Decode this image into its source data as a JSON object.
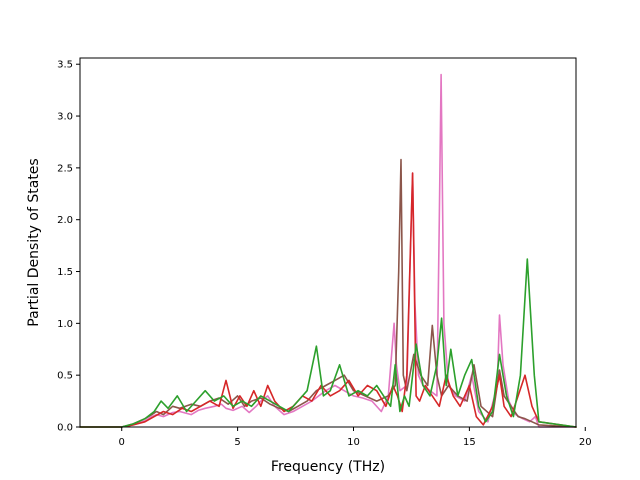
{
  "chart_data": {
    "type": "line",
    "title": "",
    "xlabel": "Frequency (THz)",
    "ylabel": "Partial Density of States",
    "xlim": [
      -1.8,
      19.6
    ],
    "ylim": [
      0,
      3.56
    ],
    "xticks": [
      0,
      5,
      10,
      15,
      20
    ],
    "yticks": [
      0.0,
      0.5,
      1.0,
      1.5,
      2.0,
      2.5,
      3.0,
      3.5
    ],
    "xtick_labels": [
      "0",
      "5",
      "10",
      "15",
      "20"
    ],
    "ytick_labels": [
      "0.0",
      "0.5",
      "1.0",
      "1.5",
      "2.0",
      "2.5",
      "3.0",
      "3.5"
    ],
    "grid": false,
    "legend": "none",
    "series": [
      {
        "color": "#e377c2",
        "x": [
          -1.8,
          0.0,
          0.5,
          1.0,
          1.3,
          1.5,
          1.8,
          2.2,
          2.5,
          3.0,
          3.3,
          3.6,
          4.0,
          4.3,
          4.5,
          4.8,
          5.2,
          5.5,
          5.8,
          6.0,
          6.3,
          6.6,
          7.0,
          7.4,
          7.8,
          8.2,
          8.5,
          8.8,
          9.2,
          9.6,
          10.0,
          10.4,
          10.8,
          11.2,
          11.5,
          11.75,
          11.85,
          12.0,
          12.3,
          12.55,
          12.65,
          12.8,
          13.0,
          13.3,
          13.6,
          13.7,
          13.78,
          13.9,
          14.1,
          14.4,
          14.8,
          15.1,
          15.4,
          15.8,
          16.2,
          16.3,
          16.45,
          16.7,
          17.0,
          17.3,
          17.6,
          17.85,
          18.0,
          19.6
        ],
        "y": [
          0,
          0,
          0.02,
          0.06,
          0.1,
          0.12,
          0.1,
          0.14,
          0.15,
          0.12,
          0.16,
          0.18,
          0.2,
          0.22,
          0.18,
          0.16,
          0.2,
          0.14,
          0.2,
          0.25,
          0.3,
          0.2,
          0.12,
          0.15,
          0.2,
          0.25,
          0.3,
          0.35,
          0.4,
          0.35,
          0.3,
          0.28,
          0.25,
          0.15,
          0.3,
          1.0,
          0.6,
          0.35,
          0.4,
          2.45,
          1.2,
          0.5,
          0.4,
          0.35,
          0.3,
          2.0,
          3.4,
          1.0,
          0.4,
          0.3,
          0.25,
          0.5,
          0.15,
          0.05,
          0.4,
          1.08,
          0.6,
          0.25,
          0.12,
          0.08,
          0.05,
          0.1,
          0,
          0
        ]
      },
      {
        "color": "#8c564b",
        "x": [
          -1.8,
          0.0,
          0.5,
          1.0,
          1.3,
          1.5,
          1.8,
          2.2,
          2.5,
          3.0,
          3.4,
          3.8,
          4.2,
          4.6,
          5.0,
          5.3,
          5.6,
          6.0,
          6.4,
          6.8,
          7.2,
          7.6,
          8.0,
          8.4,
          8.8,
          9.2,
          9.6,
          10.0,
          10.5,
          11.0,
          11.5,
          11.8,
          11.95,
          12.05,
          12.15,
          12.3,
          12.6,
          12.9,
          13.2,
          13.4,
          13.6,
          13.8,
          14.1,
          14.5,
          14.9,
          15.2,
          15.5,
          16.0,
          16.3,
          16.5,
          16.8,
          17.1,
          17.4,
          17.7,
          18.0,
          19.6
        ],
        "y": [
          0,
          0,
          0.03,
          0.08,
          0.12,
          0.15,
          0.12,
          0.2,
          0.18,
          0.22,
          0.2,
          0.25,
          0.28,
          0.22,
          0.3,
          0.2,
          0.25,
          0.28,
          0.22,
          0.18,
          0.15,
          0.2,
          0.25,
          0.35,
          0.4,
          0.45,
          0.5,
          0.35,
          0.3,
          0.25,
          0.3,
          0.4,
          1.5,
          2.58,
          0.5,
          0.35,
          0.7,
          0.5,
          0.4,
          0.98,
          0.5,
          0.3,
          0.4,
          0.3,
          0.25,
          0.6,
          0.2,
          0.1,
          0.55,
          0.3,
          0.2,
          0.1,
          0.08,
          0.05,
          0.02,
          0
        ]
      },
      {
        "color": "#d62728",
        "x": [
          -1.8,
          0.0,
          0.5,
          1.0,
          1.4,
          1.8,
          2.2,
          2.6,
          3.0,
          3.4,
          3.8,
          4.2,
          4.5,
          4.8,
          5.1,
          5.4,
          5.7,
          6.0,
          6.3,
          6.6,
          7.0,
          7.4,
          7.8,
          8.2,
          8.6,
          9.0,
          9.4,
          9.8,
          10.2,
          10.6,
          11.0,
          11.4,
          11.7,
          11.9,
          12.1,
          12.3,
          12.55,
          12.7,
          12.85,
          13.1,
          13.4,
          13.7,
          14.0,
          14.3,
          14.6,
          15.0,
          15.3,
          15.6,
          16.0,
          16.3,
          16.5,
          16.8,
          17.1,
          17.4,
          17.7,
          18.0,
          19.6
        ],
        "y": [
          0,
          0,
          0.02,
          0.05,
          0.1,
          0.15,
          0.12,
          0.18,
          0.15,
          0.2,
          0.25,
          0.2,
          0.45,
          0.18,
          0.3,
          0.2,
          0.35,
          0.2,
          0.4,
          0.25,
          0.15,
          0.2,
          0.3,
          0.25,
          0.4,
          0.3,
          0.35,
          0.45,
          0.3,
          0.4,
          0.35,
          0.2,
          0.4,
          0.3,
          0.15,
          0.5,
          2.45,
          0.3,
          0.25,
          0.4,
          0.3,
          0.2,
          0.5,
          0.3,
          0.2,
          0.4,
          0.1,
          0.02,
          0.2,
          0.5,
          0.2,
          0.1,
          0.3,
          0.5,
          0.2,
          0.05,
          0
        ]
      },
      {
        "color": "#2ca02c",
        "x": [
          -1.8,
          0.0,
          0.5,
          1.0,
          1.4,
          1.7,
          2.0,
          2.4,
          2.8,
          3.2,
          3.6,
          4.0,
          4.4,
          4.8,
          5.2,
          5.6,
          6.0,
          6.4,
          6.8,
          7.2,
          7.6,
          8.0,
          8.4,
          8.7,
          9.0,
          9.4,
          9.8,
          10.2,
          10.6,
          11.0,
          11.3,
          11.6,
          11.8,
          12.0,
          12.2,
          12.4,
          12.7,
          13.0,
          13.3,
          13.6,
          13.8,
          14.0,
          14.2,
          14.5,
          14.8,
          15.1,
          15.4,
          15.7,
          16.0,
          16.3,
          16.6,
          16.9,
          17.2,
          17.5,
          17.8,
          18.0,
          19.6
        ],
        "y": [
          0,
          0,
          0.03,
          0.08,
          0.15,
          0.25,
          0.18,
          0.3,
          0.15,
          0.25,
          0.35,
          0.25,
          0.3,
          0.2,
          0.25,
          0.2,
          0.3,
          0.25,
          0.2,
          0.15,
          0.25,
          0.35,
          0.78,
          0.3,
          0.35,
          0.6,
          0.3,
          0.35,
          0.3,
          0.4,
          0.3,
          0.2,
          0.6,
          0.15,
          0.3,
          0.2,
          0.8,
          0.4,
          0.3,
          0.6,
          1.05,
          0.4,
          0.75,
          0.3,
          0.5,
          0.65,
          0.2,
          0.05,
          0.15,
          0.7,
          0.3,
          0.1,
          0.5,
          1.62,
          0.5,
          0.05,
          0
        ]
      }
    ]
  }
}
